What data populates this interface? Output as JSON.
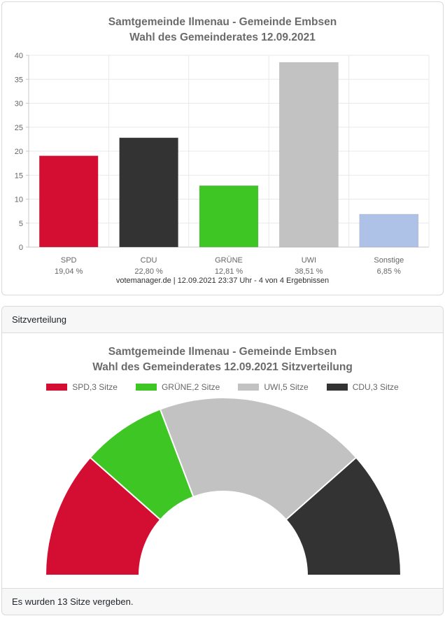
{
  "bar_panel": {
    "title_line1": "Samtgemeinde Ilmenau - Gemeinde Embsen",
    "title_line2": "Wahl des Gemeinderates 12.09.2021",
    "source_line": "votemanager.de | 12.09.2021 23:37 Uhr - 4 von 4 Ergebnissen"
  },
  "seat_panel": {
    "header": "Sitzverteilung",
    "title_line1": "Samtgemeinde Ilmenau - Gemeinde Embsen",
    "title_line2": "Wahl des Gemeinderates 12.09.2021 Sitzverteilung",
    "footer": "Es wurden 13 Sitze vergeben."
  },
  "colors": {
    "spd": "#d40d33",
    "cdu": "#333333",
    "gruene": "#3ec724",
    "uwi": "#c2c2c2",
    "sonstige": "#aec1e6",
    "grid": "#e8e8e8",
    "axis": "#c9c9c9",
    "label_text": "#666666"
  },
  "chart_data": [
    {
      "type": "bar",
      "title": "Samtgemeinde Ilmenau - Gemeinde Embsen  Wahl des Gemeinderates 12.09.2021",
      "categories": [
        "SPD",
        "CDU",
        "GRÜNE",
        "UWI",
        "Sonstige"
      ],
      "values": [
        19.04,
        22.8,
        12.81,
        38.51,
        6.85
      ],
      "value_labels": [
        "19,04 %",
        "22,80 %",
        "12,81 %",
        "38,51 %",
        "6,85 %"
      ],
      "colors": [
        "#d40d33",
        "#333333",
        "#3ec724",
        "#c2c2c2",
        "#aec1e6"
      ],
      "ylabel": "",
      "xlabel": "",
      "ylim": [
        0,
        40
      ],
      "ytick_step": 5,
      "grid": true,
      "legend_position": "none"
    },
    {
      "type": "pie",
      "variant": "half-donut",
      "title": "Samtgemeinde Ilmenau - Gemeinde Embsen  Wahl des Gemeinderates 12.09.2021 Sitzverteilung",
      "total_seats": 13,
      "legend_position": "top",
      "segments": [
        {
          "party": "SPD",
          "label": "SPD,3 Sitze",
          "seats": 3,
          "color": "#d40d33"
        },
        {
          "party": "GRÜNE",
          "label": "GRÜNE,2 Sitze",
          "seats": 2,
          "color": "#3ec724"
        },
        {
          "party": "UWI",
          "label": "UWI,5 Sitze",
          "seats": 5,
          "color": "#c2c2c2"
        },
        {
          "party": "CDU",
          "label": "CDU,3 Sitze",
          "seats": 3,
          "color": "#333333"
        }
      ]
    }
  ]
}
